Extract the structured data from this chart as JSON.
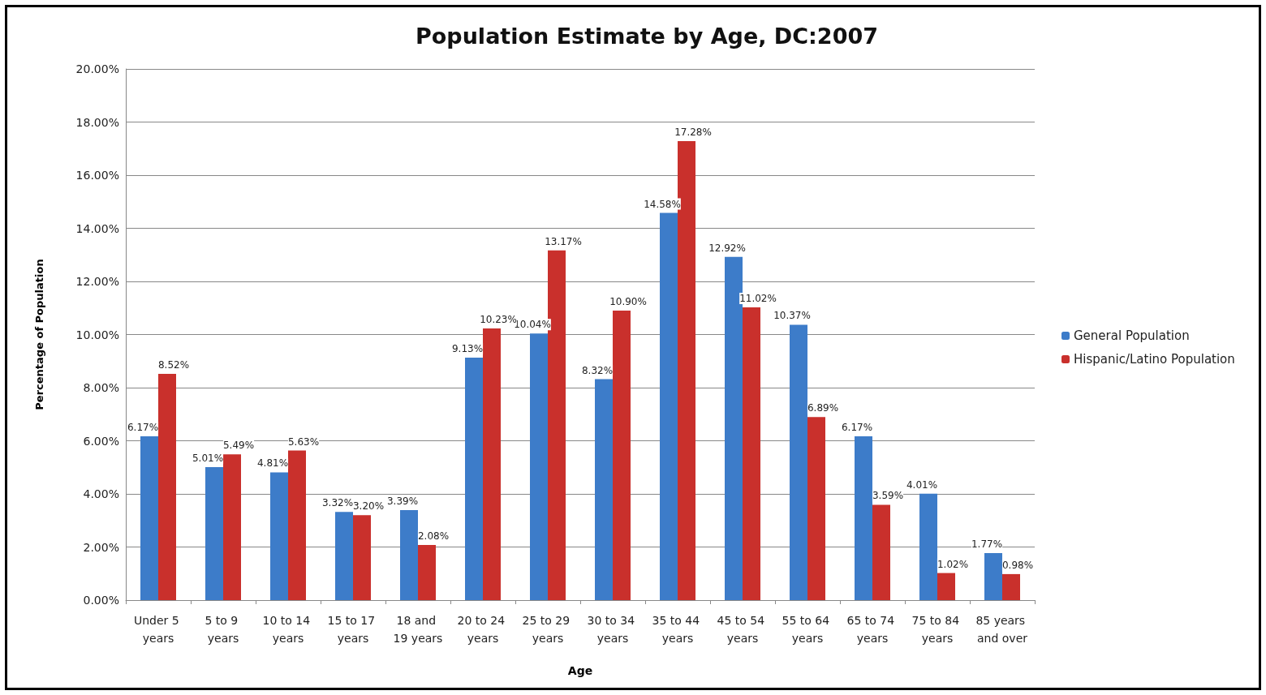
{
  "chart_data": {
    "type": "bar",
    "title": "Population Estimate by Age, DC:2007",
    "xlabel": "Age",
    "ylabel": "Percentage of Population",
    "categories": [
      "Under 5 years",
      "5 to 9 years",
      "10 to 14 years",
      "15 to 17 years",
      "18 and 19 years",
      "20 to 24 years",
      "25 to 29 years",
      "30 to 34 years",
      "35 to 44 years",
      "45 to 54 years",
      "55 to 64 years",
      "65 to 74 years",
      "75 to 84 years",
      "85 years and over"
    ],
    "series": [
      {
        "name": "General Population",
        "color": "#3d7cc9",
        "values": [
          6.17,
          5.01,
          4.81,
          3.32,
          3.39,
          9.13,
          10.04,
          8.32,
          14.58,
          12.92,
          10.37,
          6.17,
          4.01,
          1.77
        ],
        "value_labels": [
          "6.17%",
          "5.01%",
          "4.81%",
          "3.32%",
          "3.39%",
          "9.13%",
          "10.04%",
          "8.32%",
          "14.58%",
          "12.92%",
          "10.37%",
          "6.17%",
          "4.01%",
          "1.77%"
        ]
      },
      {
        "name": "Hispanic/Latino Population",
        "color": "#c9302c",
        "values": [
          8.52,
          5.49,
          5.63,
          3.2,
          2.08,
          10.23,
          13.17,
          10.9,
          17.28,
          11.02,
          6.89,
          3.59,
          1.02,
          0.98
        ],
        "value_labels": [
          "8.52%",
          "5.49%",
          "5.63%",
          "3.20%",
          "2.08%",
          "10.23%",
          "13.17%",
          "10.90%",
          "17.28%",
          "11.02%",
          "6.89%",
          "3.59%",
          "1.02%",
          "0.98%"
        ]
      }
    ],
    "ylim": [
      0,
      20
    ],
    "yticks": [
      {
        "value": 0,
        "label": "0.00%"
      },
      {
        "value": 2,
        "label": "2.00%"
      },
      {
        "value": 4,
        "label": "4.00%"
      },
      {
        "value": 6,
        "label": "6.00%"
      },
      {
        "value": 8,
        "label": "8.00%"
      },
      {
        "value": 10,
        "label": "10.00%"
      },
      {
        "value": 12,
        "label": "12.00%"
      },
      {
        "value": 14,
        "label": "14.00%"
      },
      {
        "value": 16,
        "label": "16.00%"
      },
      {
        "value": 18,
        "label": "18.00%"
      },
      {
        "value": 20,
        "label": "20.00%"
      }
    ],
    "grid": "y",
    "legend": "right"
  }
}
